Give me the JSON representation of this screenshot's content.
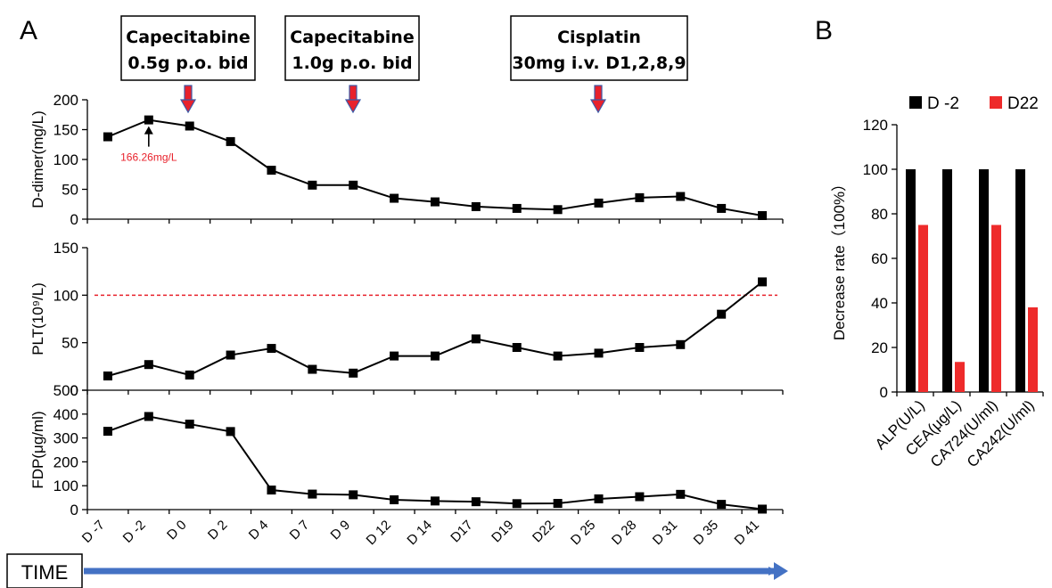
{
  "panel_labels": {
    "a": "A",
    "b": "B"
  },
  "treatments": [
    {
      "line1": "Capecitabine",
      "line2": "0.5g p.o. bid"
    },
    {
      "line1": "Capecitabine",
      "line2": "1.0g p.o. bid"
    },
    {
      "line1": "Cisplatin",
      "line2": "30mg i.v. D1,2,8,9"
    }
  ],
  "time_label": "TIME",
  "colors": {
    "arrow_red": "#e8212b",
    "arrow_blue": "#3b5aa8",
    "time_bar": "#4472c4",
    "d_minus2": "#000000",
    "d22": "#ee2b2b",
    "ref_line": "#e8212b",
    "annotation": "#e8212b"
  },
  "chart_data": [
    {
      "type": "line",
      "ylabel": "D-dimer(mg/L)",
      "ylim": [
        0,
        200
      ],
      "yticks": [
        0,
        50,
        100,
        150,
        200
      ],
      "x": [
        "D -7",
        "D -2",
        "D 0",
        "D 2",
        "D 4",
        "D 7",
        "D 9",
        "D 12",
        "D 14",
        "D17",
        "D19",
        "D22",
        "D 25",
        "D 28",
        "D 31",
        "D 35",
        "D 41"
      ],
      "values": [
        138,
        166.26,
        156,
        130,
        82,
        57,
        57,
        35,
        29,
        21,
        18,
        16,
        27,
        36,
        38,
        18,
        6
      ],
      "annotation": {
        "text": "166.26mg/L",
        "x": "D -2"
      }
    },
    {
      "type": "line",
      "ylabel": "PLT(10⁹/L)",
      "ylim": [
        0,
        150
      ],
      "yticks": [
        0,
        50,
        100,
        150
      ],
      "x": [
        "D -7",
        "D -2",
        "D 0",
        "D 2",
        "D 4",
        "D 7",
        "D 9",
        "D 12",
        "D 14",
        "D17",
        "D19",
        "D22",
        "D 25",
        "D 28",
        "D 31",
        "D 35",
        "D 41"
      ],
      "values": [
        15,
        27,
        16,
        37,
        44,
        22,
        18,
        36,
        36,
        54,
        45,
        36,
        39,
        45,
        48,
        80,
        114
      ],
      "reference_line": 100
    },
    {
      "type": "line",
      "ylabel": "FDP(μg/ml)",
      "ylim": [
        0,
        500
      ],
      "yticks": [
        0,
        100,
        200,
        300,
        400,
        500
      ],
      "x": [
        "D -7",
        "D -2",
        "D 0",
        "D 2",
        "D 4",
        "D 7",
        "D 9",
        "D 12",
        "D 14",
        "D17",
        "D19",
        "D22",
        "D 25",
        "D 28",
        "D 31",
        "D 35",
        "D 41"
      ],
      "values": [
        328,
        390,
        358,
        327,
        82,
        65,
        62,
        41,
        36,
        33,
        25,
        26,
        45,
        54,
        64,
        22,
        2
      ]
    },
    {
      "type": "bar",
      "ylabel": "Decrease rate（100%）",
      "ylim": [
        0,
        120
      ],
      "yticks": [
        0,
        20,
        40,
        60,
        80,
        100,
        120
      ],
      "categories": [
        "ALP(U/L)",
        "CEA(μg/L)",
        "CA724(U/ml)",
        "CA242(U/ml)"
      ],
      "series": [
        {
          "name": "D -2",
          "values": [
            100,
            100,
            100,
            100
          ]
        },
        {
          "name": "D22",
          "values": [
            75,
            13.5,
            75,
            38
          ]
        }
      ],
      "legend": "top"
    }
  ]
}
